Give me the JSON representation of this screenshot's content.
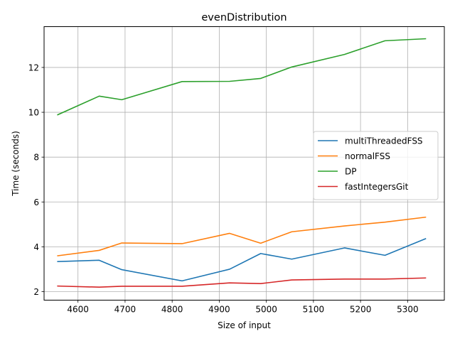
{
  "chart_data": {
    "type": "line",
    "title": "evenDistribution",
    "xlabel": "Size of input",
    "ylabel": "Time (seconds)",
    "xlim": [
      4528,
      5378
    ],
    "ylim": [
      1.62,
      13.82
    ],
    "xticks": [
      4600,
      4700,
      4800,
      4900,
      5000,
      5100,
      5200,
      5300
    ],
    "yticks": [
      2,
      4,
      6,
      8,
      10,
      12
    ],
    "grid": true,
    "legend_position": "center-right",
    "x": [
      4557,
      4645,
      4693,
      4821,
      4922,
      4988,
      5054,
      5166,
      5252,
      5338
    ],
    "series": [
      {
        "name": "multiThreadedFSS",
        "color": "#1f77b4",
        "values": [
          3.34,
          3.4,
          2.98,
          2.48,
          3.0,
          3.7,
          3.45,
          3.95,
          3.62,
          4.36
        ]
      },
      {
        "name": "normalFSS",
        "color": "#ff7f0e",
        "values": [
          3.6,
          3.84,
          4.17,
          4.14,
          4.6,
          4.16,
          4.67,
          4.93,
          5.1,
          5.32
        ]
      },
      {
        "name": "DP",
        "color": "#2ca02c",
        "values": [
          9.89,
          10.72,
          10.56,
          11.37,
          11.38,
          11.51,
          12.02,
          12.58,
          13.19,
          13.28
        ]
      },
      {
        "name": "fastIntegersGit",
        "color": "#d62728",
        "values": [
          2.25,
          2.2,
          2.24,
          2.24,
          2.39,
          2.36,
          2.52,
          2.56,
          2.56,
          2.61
        ]
      }
    ]
  }
}
